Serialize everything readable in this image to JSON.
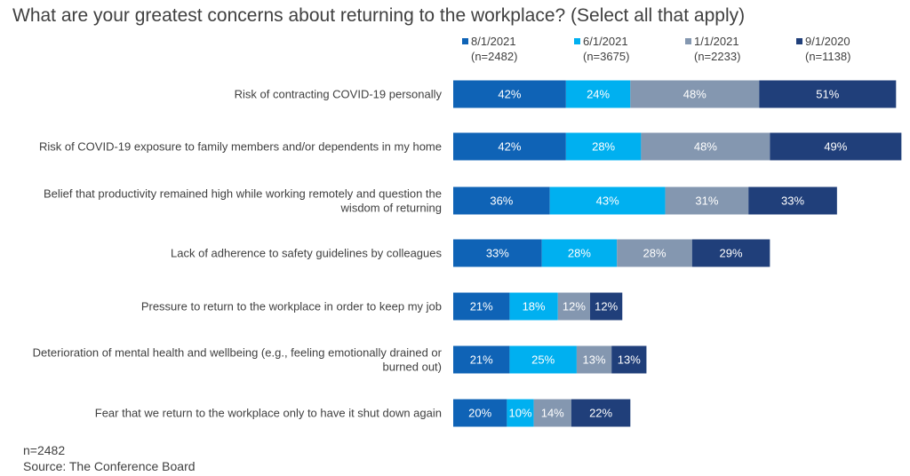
{
  "chart_data": {
    "type": "bar",
    "orientation": "horizontal",
    "stacked": true,
    "title": "What are your greatest concerns about returning to the workplace? (Select all that apply)",
    "categories": [
      "Risk of contracting COVID-19 personally",
      "Risk of COVID-19 exposure to family members and/or dependents in my home",
      "Belief that productivity remained high while working remotely and question the wisdom of returning",
      "Lack of adherence to safety guidelines by colleagues",
      "Pressure to return to the workplace in order to keep my job",
      "Deterioration of mental health and wellbeing (e.g., feeling emotionally drained or burned out)",
      "Fear that we return to the workplace only to have it shut down again"
    ],
    "category_lines": [
      [
        "Risk of contracting COVID-19 personally"
      ],
      [
        "Risk of COVID-19 exposure to family members and/or dependents in my home"
      ],
      [
        "Belief that productivity remained high while working remotely and question the",
        "wisdom of returning"
      ],
      [
        "Lack of adherence to safety guidelines by colleagues"
      ],
      [
        "Pressure to return to the workplace in order to keep my job"
      ],
      [
        "Deterioration of mental health and wellbeing (e.g., feeling emotionally drained or",
        "burned out)"
      ],
      [
        "Fear that we return to the workplace only to have it shut down again"
      ]
    ],
    "series": [
      {
        "name": "8/1/2021",
        "n": "(n=2482)",
        "color": "#0f63b6",
        "values": [
          42,
          42,
          36,
          33,
          21,
          21,
          20
        ]
      },
      {
        "name": "6/1/2021",
        "n": "(n=3675)",
        "color": "#00b0f0",
        "values": [
          24,
          28,
          43,
          28,
          18,
          25,
          10
        ]
      },
      {
        "name": "1/1/2021",
        "n": "(n=2233)",
        "color": "#8497b0",
        "values": [
          48,
          48,
          31,
          28,
          12,
          13,
          14
        ]
      },
      {
        "name": "9/1/2020",
        "n": "(n=1138)",
        "color": "#203f7a",
        "values": [
          51,
          49,
          33,
          29,
          12,
          13,
          22
        ]
      }
    ],
    "value_suffix": "%",
    "legend_position": "top",
    "grid": false,
    "axis_visible": false
  },
  "footnote": {
    "sample": "n=2482",
    "source": "Source: The Conference Board"
  }
}
